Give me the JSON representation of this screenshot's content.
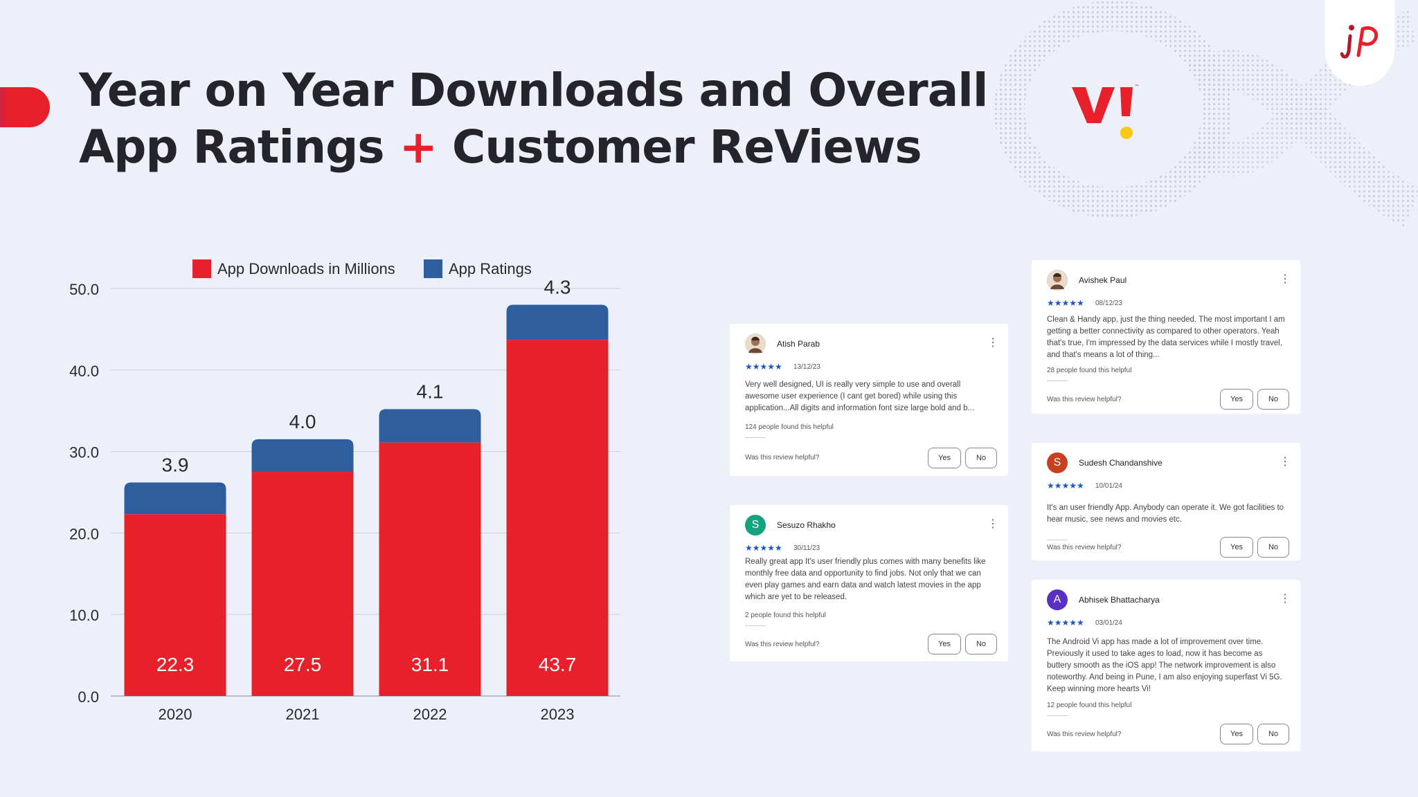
{
  "title": {
    "line1": "Year on Year Downloads and Overall",
    "line2_a": "App Ratings",
    "plus": "+",
    "line2_b": "Customer ReViews"
  },
  "logo": {
    "brand": "VI",
    "tm": "™"
  },
  "colors": {
    "downloads": "#e8202c",
    "ratings": "#2f5e9e",
    "accent": "#e8202c"
  },
  "chart_data": {
    "type": "bar",
    "stacked": true,
    "categories": [
      "2020",
      "2021",
      "2022",
      "2023"
    ],
    "series": [
      {
        "name": "App Downloads in Millions",
        "values": [
          22.3,
          27.5,
          31.1,
          43.7
        ],
        "color": "#e8202c"
      },
      {
        "name": "App Ratings",
        "values": [
          3.9,
          4.0,
          4.1,
          4.3
        ],
        "color": "#2f5e9e"
      }
    ],
    "yticks": [
      "0.0",
      "10.0",
      "20.0",
      "30.0",
      "40.0",
      "50.0"
    ],
    "ylim": [
      0,
      50
    ],
    "grid": true,
    "legend": "top"
  },
  "reviews": [
    {
      "name": "Atish Parab",
      "avatar": "",
      "stars": "★★★★★",
      "date": "13/12/23",
      "lines": [
        "Very well designed, UI is really very simple to use and overall",
        "awesome user experience (I cant get bored) while using this",
        "application...All digits and information font size large bold and b..."
      ],
      "helpful": "124 people found this helpful",
      "question": "Was this review helpful?",
      "yes": "Yes",
      "no": "No"
    },
    {
      "name": "Sesuzo Rhakho",
      "avatar": "S",
      "stars": "★★★★★",
      "date": "30/11/23",
      "lines": [
        "Really great app It's user friendly plus comes with many benefits like",
        "monthly free data and opportunity to find jobs. Not only that we can",
        "even play games and earn data and watch latest movies in the app",
        "which are yet to be released."
      ],
      "helpful": "2 people found this helpful",
      "question": "Was this review helpful?",
      "yes": "Yes",
      "no": "No"
    },
    {
      "name": "Avishek Paul",
      "avatar": "",
      "stars": "★★★★★",
      "date": "08/12/23",
      "lines": [
        "Clean & Handy app, just the thing needed. The most important I am",
        "getting a better connectivity as compared to other operators. Yeah",
        "that's true, I'm impressed by the data services while I mostly travel,",
        "and that's means a lot of thing..."
      ],
      "helpful": "28 people found this helpful",
      "question": "Was this review helpful?",
      "yes": "Yes",
      "no": "No"
    },
    {
      "name": "Sudesh Chandanshive",
      "avatar": "S",
      "stars": "★★★★★",
      "date": "10/01/24",
      "lines": [
        "It's an user friendly App. Anybody can operate it. We got facilities to",
        "hear music, see news and movies etc."
      ],
      "helpful": "",
      "question": "Was this review helpful?",
      "yes": "Yes",
      "no": "No"
    },
    {
      "name": "Abhisek Bhattacharya",
      "avatar": "A",
      "stars": "★★★★★",
      "date": "03/01/24",
      "lines": [
        "The Android Vi app has made a lot of improvement over time.",
        "Previously it used to take ages to load, now it has become as",
        "buttery smooth as the iOS app! The network improvement is also",
        "noteworthy. And being in Pune, I am also enjoying superfast Vi 5G.",
        "Keep winning more hearts Vi!"
      ],
      "helpful": "12 people found this helpful",
      "question": "Was this review helpful?",
      "yes": "Yes",
      "no": "No"
    }
  ]
}
